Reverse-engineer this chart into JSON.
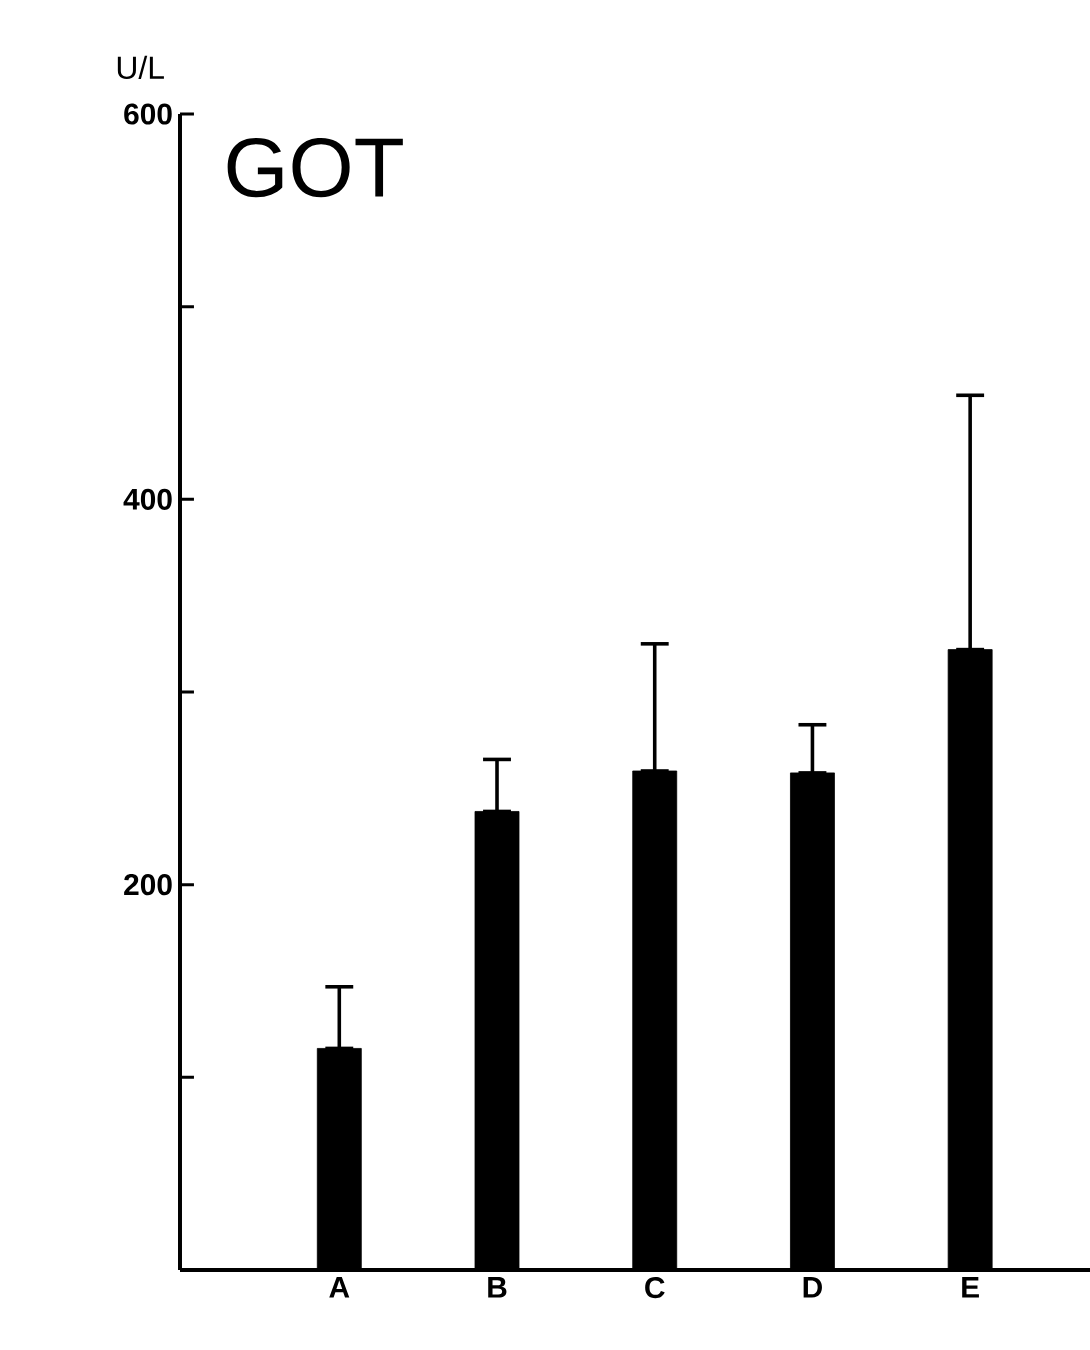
{
  "chart_data": {
    "type": "bar",
    "title": "GOT",
    "ylabel": "U/L",
    "categories": [
      "A",
      "B",
      "C",
      "D",
      "E"
    ],
    "values": [
      115,
      238,
      259,
      258,
      322
    ],
    "errors": [
      [
        115,
        147
      ],
      [
        238,
        265
      ],
      [
        259,
        325
      ],
      [
        258,
        283
      ],
      [
        322,
        454
      ]
    ],
    "colors": [
      "#000000",
      "#000000",
      "#000000",
      "#000000",
      "#000000"
    ],
    "ylim": [
      0,
      600
    ],
    "yticks": [
      {
        "value": 0,
        "label": null
      },
      {
        "value": 100,
        "label": null
      },
      200,
      {
        "value": 300,
        "label": null
      },
      400,
      {
        "value": 500,
        "label": null
      },
      600
    ]
  }
}
